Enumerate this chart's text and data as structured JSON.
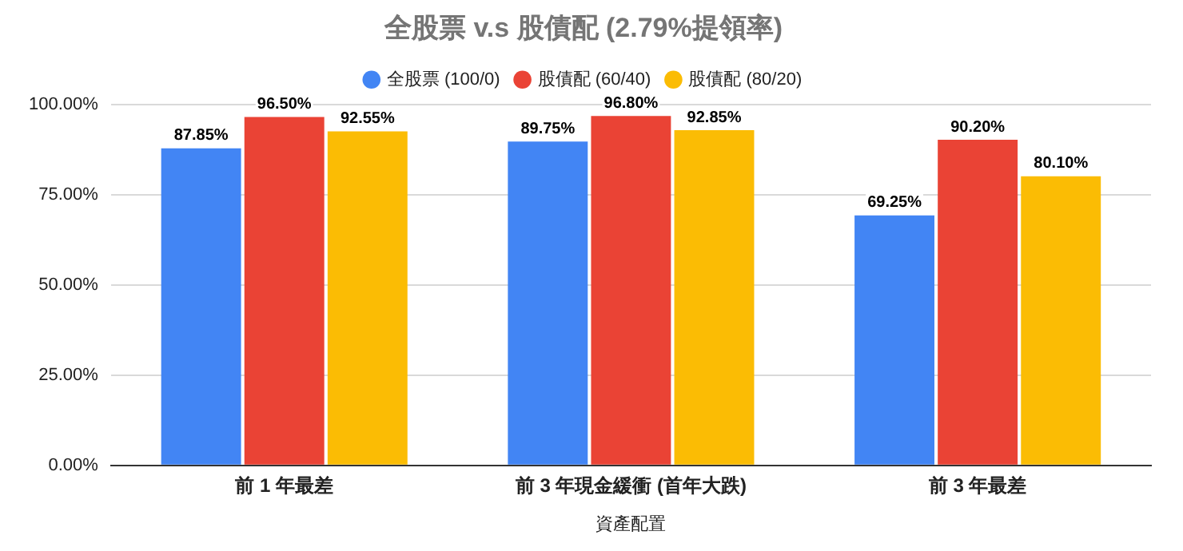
{
  "chart_data": {
    "type": "bar",
    "title": "全股票 v.s 股債配 (2.79%提領率)",
    "xlabel": "資產配置",
    "categories": [
      "前 1 年最差",
      "前 3 年現金緩衝 (首年大跌)",
      "前 3 年最差"
    ],
    "series": [
      {
        "name": "全股票 (100/0)",
        "color": "#4285f4",
        "values": [
          87.85,
          89.75,
          69.25
        ],
        "value_labels": [
          "87.85%",
          "89.75%",
          "69.25%"
        ]
      },
      {
        "name": "股債配 (60/40)",
        "color": "#ea4335",
        "values": [
          96.5,
          96.8,
          90.2
        ],
        "value_labels": [
          "96.50%",
          "96.80%",
          "90.20%"
        ]
      },
      {
        "name": "股債配 (80/20)",
        "color": "#fbbc04",
        "values": [
          92.55,
          92.85,
          80.1
        ],
        "value_labels": [
          "92.55%",
          "92.85%",
          "80.10%"
        ]
      }
    ],
    "ylim": [
      0,
      100
    ],
    "yticks": [
      {
        "value": 0,
        "label": "0.00%"
      },
      {
        "value": 25,
        "label": "25.00%"
      },
      {
        "value": 50,
        "label": "50.00%"
      },
      {
        "value": 75,
        "label": "75.00%"
      },
      {
        "value": 100,
        "label": "100.00%"
      }
    ],
    "grid": "y",
    "legend": "top"
  }
}
